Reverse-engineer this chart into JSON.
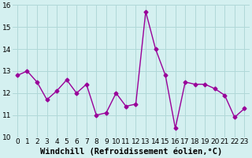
{
  "x": [
    0,
    1,
    2,
    3,
    4,
    5,
    6,
    7,
    8,
    9,
    10,
    11,
    12,
    13,
    14,
    15,
    16,
    17,
    18,
    19,
    20,
    21,
    22,
    23
  ],
  "y": [
    12.8,
    13.0,
    12.5,
    11.7,
    12.1,
    12.6,
    12.0,
    12.4,
    11.0,
    11.1,
    12.0,
    11.4,
    11.5,
    15.7,
    14.0,
    12.8,
    10.4,
    12.5,
    12.4,
    12.4,
    12.2,
    11.9,
    10.9,
    11.3
  ],
  "line_color": "#990099",
  "marker": "D",
  "marker_size": 2.5,
  "bg_color": "#d4f0f0",
  "grid_color": "#b0d8d8",
  "xlabel": "Windchill (Refroidissement éolien,°C)",
  "ylim": [
    10,
    16
  ],
  "xlim_min": -0.5,
  "xlim_max": 23.5,
  "xticks": [
    0,
    1,
    2,
    3,
    4,
    5,
    6,
    7,
    8,
    9,
    10,
    11,
    12,
    13,
    14,
    15,
    16,
    17,
    18,
    19,
    20,
    21,
    22,
    23
  ],
  "yticks": [
    10,
    11,
    12,
    13,
    14,
    15,
    16
  ],
  "tick_fontsize": 6.5,
  "xlabel_fontsize": 7.5
}
